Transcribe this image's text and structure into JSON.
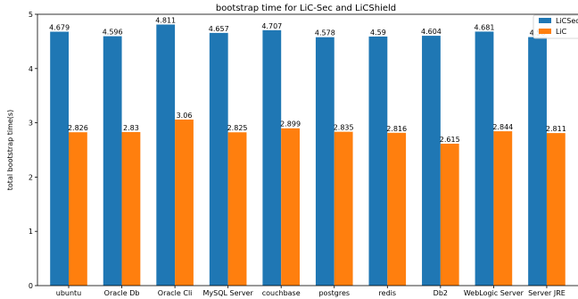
{
  "chart_data": {
    "type": "bar",
    "title": "bootstrap time for LiC-Sec and LiCShield",
    "xlabel": "",
    "ylabel": "total bootstrap time(s)",
    "ylim": [
      0,
      5
    ],
    "yticks": [
      0,
      1,
      2,
      3,
      4,
      5
    ],
    "grid": false,
    "legend_position": "top-right",
    "categories": [
      "ubuntu",
      "Oracle Db",
      "Oracle Cli",
      "MySQL Server",
      "couchbase",
      "postgres",
      "redis",
      "Db2",
      "WebLogic Server",
      "Server JRE"
    ],
    "series": [
      {
        "name": "LiCSec",
        "color": "#1f77b4",
        "values": [
          4.679,
          4.596,
          4.811,
          4.657,
          4.707,
          4.578,
          4.59,
          4.604,
          4.681,
          4.58
        ],
        "labels": [
          "4.679",
          "4.596",
          "4.811",
          "4.657",
          "4.707",
          "4.578",
          "4.59",
          "4.604",
          "4.681",
          "4.58"
        ]
      },
      {
        "name": "LiC",
        "color": "#ff7f0e",
        "values": [
          2.826,
          2.83,
          3.06,
          2.825,
          2.899,
          2.835,
          2.816,
          2.615,
          2.844,
          2.811
        ],
        "labels": [
          "2.826",
          "2.83",
          "3.06",
          "2.825",
          "2.899",
          "2.835",
          "2.816",
          "2.615",
          "2.844",
          "2.811"
        ]
      }
    ]
  }
}
